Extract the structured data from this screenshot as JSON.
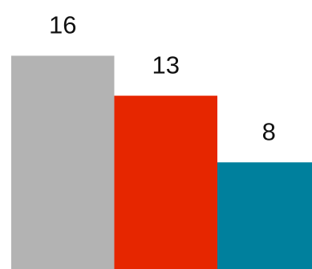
{
  "chart_data": {
    "type": "bar",
    "categories": [
      null,
      null,
      null
    ],
    "values": [
      16,
      13,
      8
    ],
    "colors": [
      "#b3b3b3",
      "#e62600",
      "#00809d"
    ],
    "ylim": [
      0,
      20
    ]
  }
}
